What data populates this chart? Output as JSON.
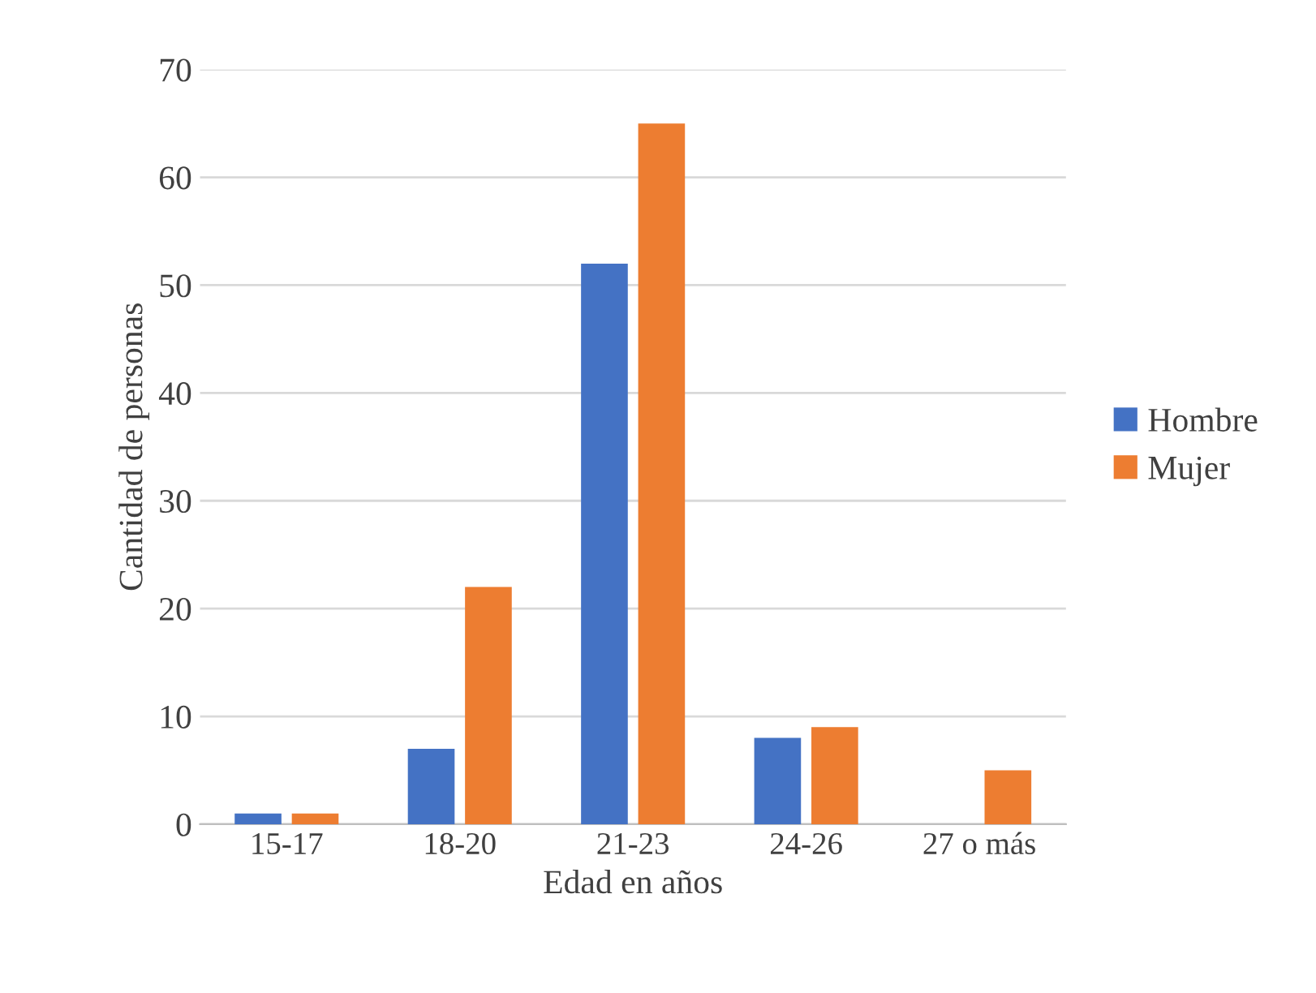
{
  "chart_data": {
    "type": "bar",
    "xlabel": "Edad en años",
    "ylabel": "Cantidad de personas",
    "categories": [
      "15-17",
      "18-20",
      "21-23",
      "24-26",
      "27 o más"
    ],
    "series": [
      {
        "name": "Hombre",
        "color": "#4472c4",
        "values": [
          1,
          7,
          52,
          8,
          0
        ]
      },
      {
        "name": "Mujer",
        "color": "#ed7d31",
        "values": [
          1,
          22,
          65,
          9,
          5
        ]
      }
    ],
    "ylim": [
      0,
      70
    ],
    "yticks": [
      0,
      10,
      20,
      30,
      40,
      50,
      60,
      70
    ],
    "grid": "y",
    "legend": "right"
  }
}
